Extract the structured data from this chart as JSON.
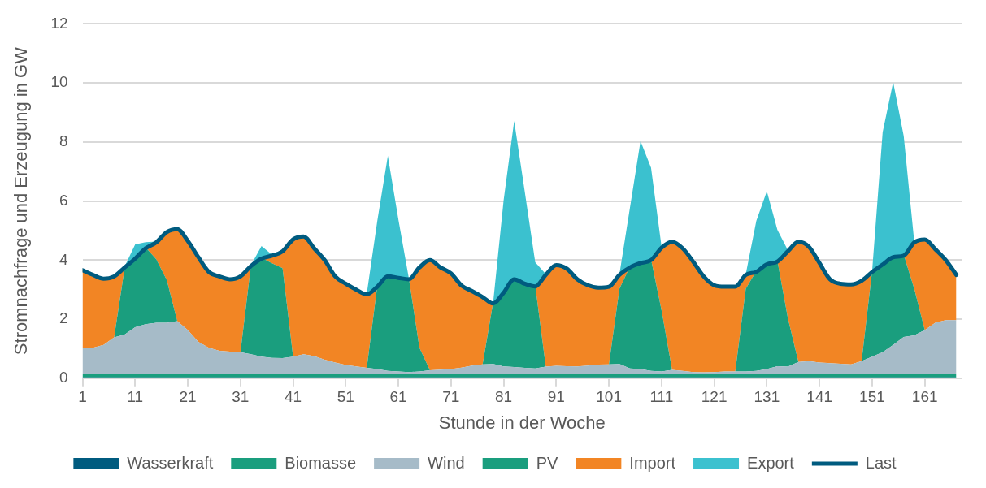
{
  "chart_data": {
    "type": "area",
    "xlabel": "Stunde in der Woche",
    "ylabel": "Stromnachfrage und Erzeugung in GW",
    "stacked": true,
    "grid": "y",
    "legend": "bottom",
    "marker": "none",
    "xlim": [
      1,
      168
    ],
    "xticks": [
      1,
      11,
      21,
      31,
      41,
      51,
      61,
      71,
      81,
      91,
      101,
      111,
      121,
      131,
      141,
      151,
      161
    ],
    "ylim": [
      0,
      12
    ],
    "yticks": [
      0,
      2,
      4,
      6,
      8,
      10,
      12
    ],
    "x": [
      1,
      3,
      5,
      7,
      9,
      11,
      13,
      15,
      17,
      19,
      21,
      23,
      25,
      27,
      29,
      31,
      33,
      35,
      37,
      39,
      41,
      43,
      45,
      47,
      49,
      51,
      53,
      55,
      57,
      59,
      61,
      63,
      65,
      67,
      69,
      71,
      73,
      75,
      77,
      79,
      81,
      83,
      85,
      87,
      89,
      91,
      93,
      95,
      97,
      99,
      101,
      103,
      105,
      107,
      109,
      111,
      113,
      115,
      117,
      119,
      121,
      123,
      125,
      127,
      129,
      131,
      133,
      135,
      137,
      139,
      141,
      143,
      145,
      147,
      149,
      151,
      153,
      155,
      157,
      159,
      161,
      163,
      165,
      167
    ],
    "series": [
      {
        "name": "Wasserkraft",
        "color": "#005b7f",
        "values": [
          0.03,
          0.03,
          0.03,
          0.03,
          0.03,
          0.03,
          0.03,
          0.03,
          0.03,
          0.03,
          0.03,
          0.03,
          0.03,
          0.03,
          0.03,
          0.03,
          0.03,
          0.03,
          0.03,
          0.03,
          0.03,
          0.03,
          0.03,
          0.03,
          0.03,
          0.03,
          0.03,
          0.03,
          0.03,
          0.03,
          0.03,
          0.03,
          0.03,
          0.03,
          0.03,
          0.03,
          0.03,
          0.03,
          0.03,
          0.03,
          0.03,
          0.03,
          0.03,
          0.03,
          0.03,
          0.03,
          0.03,
          0.03,
          0.03,
          0.03,
          0.03,
          0.03,
          0.03,
          0.03,
          0.03,
          0.03,
          0.03,
          0.03,
          0.03,
          0.03,
          0.03,
          0.03,
          0.03,
          0.03,
          0.03,
          0.03,
          0.03,
          0.03,
          0.03,
          0.03,
          0.03,
          0.03,
          0.03,
          0.03,
          0.03,
          0.03,
          0.03,
          0.03,
          0.03,
          0.03,
          0.03,
          0.03,
          0.03,
          0.03
        ]
      },
      {
        "name": "Biomasse",
        "color": "#1a9e7e",
        "values": [
          0.1,
          0.1,
          0.1,
          0.1,
          0.1,
          0.1,
          0.1,
          0.1,
          0.1,
          0.1,
          0.1,
          0.1,
          0.1,
          0.1,
          0.1,
          0.1,
          0.1,
          0.1,
          0.1,
          0.1,
          0.1,
          0.1,
          0.1,
          0.1,
          0.1,
          0.1,
          0.1,
          0.1,
          0.1,
          0.1,
          0.1,
          0.1,
          0.1,
          0.1,
          0.1,
          0.1,
          0.1,
          0.1,
          0.1,
          0.1,
          0.1,
          0.1,
          0.1,
          0.1,
          0.1,
          0.1,
          0.1,
          0.1,
          0.1,
          0.1,
          0.1,
          0.1,
          0.1,
          0.1,
          0.1,
          0.1,
          0.1,
          0.1,
          0.1,
          0.1,
          0.1,
          0.1,
          0.1,
          0.1,
          0.1,
          0.1,
          0.1,
          0.1,
          0.1,
          0.1,
          0.1,
          0.1,
          0.1,
          0.1,
          0.1,
          0.1,
          0.1,
          0.1,
          0.1,
          0.1,
          0.1,
          0.1,
          0.1,
          0.1
        ]
      },
      {
        "name": "Wind",
        "color": "#a6bbc8",
        "values": [
          0.88,
          0.9,
          1.0,
          1.25,
          1.35,
          1.6,
          1.7,
          1.75,
          1.75,
          1.8,
          1.5,
          1.1,
          0.9,
          0.8,
          0.77,
          0.75,
          0.68,
          0.6,
          0.56,
          0.55,
          0.6,
          0.68,
          0.62,
          0.5,
          0.4,
          0.32,
          0.27,
          0.22,
          0.18,
          0.12,
          0.1,
          0.08,
          0.1,
          0.14,
          0.16,
          0.18,
          0.23,
          0.3,
          0.34,
          0.35,
          0.27,
          0.25,
          0.22,
          0.2,
          0.26,
          0.29,
          0.28,
          0.27,
          0.3,
          0.33,
          0.34,
          0.35,
          0.2,
          0.18,
          0.12,
          0.1,
          0.15,
          0.12,
          0.08,
          0.07,
          0.08,
          0.1,
          0.1,
          0.1,
          0.12,
          0.18,
          0.28,
          0.26,
          0.42,
          0.45,
          0.4,
          0.38,
          0.36,
          0.34,
          0.45,
          0.6,
          0.75,
          1.0,
          1.27,
          1.32,
          1.5,
          1.75,
          1.84,
          1.84
        ]
      },
      {
        "name": "PV",
        "color": "#1a9e7e",
        "values": [
          0,
          0,
          0,
          0,
          2.25,
          2.35,
          2.6,
          2.15,
          1.45,
          0,
          0,
          0,
          0,
          0,
          0,
          0,
          3.02,
          3.35,
          3.2,
          3.05,
          0,
          0,
          0,
          0,
          0,
          0,
          0,
          0,
          2.82,
          3.23,
          3.2,
          3.17,
          0.8,
          0,
          0,
          0,
          0,
          0,
          0,
          2.08,
          2.53,
          3.0,
          2.88,
          2.81,
          0,
          0,
          0,
          0,
          0,
          0,
          0,
          2.55,
          3.45,
          3.62,
          3.78,
          2.07,
          0,
          0,
          0,
          0,
          0,
          0,
          0,
          2.8,
          3.38,
          3.58,
          3.57,
          1.64,
          0,
          0,
          0,
          0,
          0,
          0,
          0,
          2.9,
          3.0,
          3.0,
          2.78,
          1.58,
          0,
          0,
          0,
          0
        ]
      },
      {
        "name": "Import",
        "color": "#f28524",
        "values": [
          2.68,
          2.5,
          2.27,
          2.1,
          0.05,
          0,
          0,
          0.6,
          1.65,
          3.15,
          3.05,
          2.9,
          2.6,
          2.55,
          2.48,
          2.6,
          0,
          0,
          0.29,
          0.6,
          4.0,
          4.02,
          3.68,
          3.4,
          2.95,
          2.78,
          2.63,
          2.52,
          0,
          0,
          0,
          0,
          2.75,
          3.76,
          3.49,
          3.27,
          2.81,
          2.55,
          2.31,
          0,
          0,
          0,
          0,
          0,
          3.14,
          3.44,
          3.33,
          2.98,
          2.75,
          2.64,
          2.66,
          0.5,
          0,
          0,
          0,
          2.15,
          4.37,
          4.18,
          3.77,
          3.28,
          2.97,
          2.9,
          2.9,
          0.5,
          0,
          0,
          0,
          2.3,
          4.1,
          3.9,
          3.4,
          2.87,
          2.74,
          2.74,
          2.75,
          0,
          0,
          0,
          0,
          1.6,
          3.1,
          2.52,
          2.06,
          1.56
        ]
      },
      {
        "name": "Export",
        "color": "#3bc1cf",
        "values": [
          0,
          0,
          0,
          0,
          0,
          0.45,
          0.18,
          0,
          0,
          0,
          0,
          0,
          0,
          0,
          0,
          0,
          0,
          0.4,
          0,
          0,
          0,
          0,
          0,
          0,
          0,
          0,
          0,
          0,
          2.2,
          4.05,
          1.95,
          0,
          0,
          0,
          0,
          0,
          0,
          0,
          0,
          0,
          3.1,
          5.33,
          3.1,
          0.79,
          0,
          0,
          0,
          0,
          0,
          0,
          0,
          0,
          2.0,
          4.1,
          3.1,
          0,
          0,
          0,
          0,
          0,
          0,
          0,
          0,
          0,
          1.7,
          2.44,
          1.05,
          0,
          0,
          0,
          0,
          0,
          0,
          0,
          0,
          0,
          4.45,
          5.9,
          4.02,
          0,
          0,
          0,
          0,
          0
        ]
      },
      {
        "name": "Last",
        "type": "line",
        "color": "#005b7f",
        "values": [
          3.66,
          3.5,
          3.37,
          3.45,
          3.75,
          4.05,
          4.4,
          4.6,
          4.95,
          5.05,
          4.65,
          4.1,
          3.6,
          3.45,
          3.35,
          3.45,
          3.8,
          4.05,
          4.15,
          4.3,
          4.7,
          4.8,
          4.4,
          4.0,
          3.45,
          3.2,
          3.0,
          2.84,
          3.1,
          3.45,
          3.4,
          3.35,
          3.75,
          4.0,
          3.75,
          3.55,
          3.14,
          2.95,
          2.75,
          2.53,
          2.9,
          3.35,
          3.2,
          3.11,
          3.5,
          3.83,
          3.71,
          3.35,
          3.15,
          3.07,
          3.1,
          3.5,
          3.75,
          3.9,
          4.0,
          4.42,
          4.62,
          4.4,
          3.95,
          3.45,
          3.15,
          3.1,
          3.1,
          3.5,
          3.6,
          3.86,
          3.95,
          4.3,
          4.62,
          4.45,
          3.9,
          3.35,
          3.2,
          3.18,
          3.3,
          3.6,
          3.85,
          4.1,
          4.15,
          4.6,
          4.7,
          4.37,
          4.0,
          3.5
        ]
      }
    ]
  }
}
